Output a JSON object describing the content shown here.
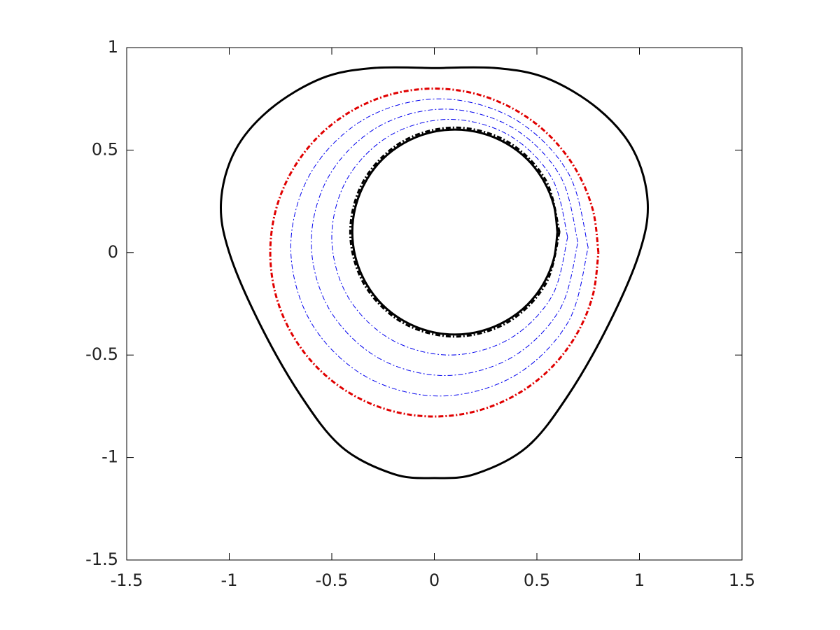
{
  "chart_data": {
    "type": "line",
    "xlim": [
      -1.5,
      1.5
    ],
    "ylim": [
      -1.5,
      1
    ],
    "xticks": [
      -1.5,
      -1,
      -0.5,
      0,
      0.5,
      1,
      1.5
    ],
    "yticks": [
      -1.5,
      -1,
      -0.5,
      0,
      0.5,
      1
    ],
    "grid": false,
    "series": [
      {
        "color": "#000000",
        "dash": "solid",
        "width": 3,
        "x": [
          0,
          0.3,
          0.55,
          0.8,
          0.97,
          1.04,
          1.0,
          0.85,
          0.65,
          0.45,
          0.2,
          0,
          -0.2,
          -0.45,
          -0.65,
          -0.85,
          -1.0,
          -1.04,
          -0.97,
          -0.8,
          -0.55,
          -0.3,
          0
        ],
        "values": [
          0.9,
          0.9,
          0.85,
          0.7,
          0.5,
          0.25,
          0.0,
          -0.35,
          -0.7,
          -0.95,
          -1.08,
          -1.1,
          -1.08,
          -0.95,
          -0.7,
          -0.35,
          0.0,
          0.25,
          0.5,
          0.7,
          0.85,
          0.9,
          0.9
        ]
      },
      {
        "color": "#e00000",
        "dash": "dashdot",
        "width": 3,
        "x": [
          0.8,
          0.773,
          0.693,
          0.566,
          0.4,
          0.207,
          0,
          -0.207,
          -0.4,
          -0.566,
          -0.693,
          -0.773,
          -0.8,
          -0.773,
          -0.693,
          -0.566,
          -0.4,
          -0.207,
          0,
          0.207,
          0.4,
          0.566,
          0.693,
          0.773,
          0.8
        ],
        "values": [
          0,
          0.207,
          0.4,
          0.566,
          0.693,
          0.773,
          0.8,
          0.773,
          0.693,
          0.566,
          0.4,
          0.207,
          0,
          -0.207,
          -0.4,
          -0.566,
          -0.693,
          -0.773,
          -0.8,
          -0.773,
          -0.693,
          -0.566,
          -0.4,
          -0.207,
          0
        ]
      },
      {
        "color": "#0000ee",
        "dash": "dashdot",
        "width": 1,
        "x": [
          0.65,
          0.573,
          0.363,
          0.075,
          -0.213,
          -0.423,
          -0.5,
          -0.423,
          -0.213,
          0.075,
          0.363,
          0.573,
          0.65
        ],
        "values": [
          0.075,
          0.363,
          0.573,
          0.65,
          0.573,
          0.363,
          0.075,
          -0.213,
          -0.423,
          -0.5,
          -0.423,
          -0.213,
          0.075
        ]
      },
      {
        "color": "#0000ee",
        "dash": "dashdot",
        "width": 1,
        "x": [
          0.7,
          0.613,
          0.375,
          0.05,
          -0.275,
          -0.513,
          -0.6,
          -0.513,
          -0.275,
          0.05,
          0.375,
          0.613,
          0.7
        ],
        "values": [
          0.05,
          0.375,
          0.613,
          0.7,
          0.613,
          0.375,
          0.05,
          -0.275,
          -0.513,
          -0.6,
          -0.513,
          -0.275,
          0.05
        ]
      },
      {
        "color": "#0000ee",
        "dash": "dashdot",
        "width": 1,
        "x": [
          0.75,
          0.653,
          0.388,
          0.025,
          -0.338,
          -0.603,
          -0.7,
          -0.603,
          -0.338,
          0.025,
          0.388,
          0.653,
          0.75
        ],
        "values": [
          0.025,
          0.388,
          0.653,
          0.75,
          0.653,
          0.388,
          0.025,
          -0.338,
          -0.603,
          -0.7,
          -0.603,
          -0.338,
          0.025
        ]
      },
      {
        "color": "#000000",
        "dash": "dashdot",
        "width": 3,
        "x": [
          0.61,
          0.542,
          0.355,
          0.1,
          -0.155,
          -0.342,
          -0.41,
          -0.342,
          -0.155,
          0.1,
          0.355,
          0.542,
          0.61
        ],
        "values": [
          0.1,
          0.355,
          0.542,
          0.61,
          0.542,
          0.355,
          0.1,
          -0.155,
          -0.342,
          -0.41,
          -0.342,
          -0.155,
          0.1
        ]
      },
      {
        "color": "#000000",
        "dash": "solid",
        "width": 3,
        "x": [
          0.6,
          0.583,
          0.533,
          0.454,
          0.35,
          0.229,
          0.1,
          -0.029,
          -0.15,
          -0.254,
          -0.333,
          -0.383,
          -0.4,
          -0.383,
          -0.333,
          -0.254,
          -0.15,
          -0.029,
          0.1,
          0.229,
          0.35,
          0.454,
          0.533,
          0.583,
          0.6
        ],
        "values": [
          0.1,
          0.229,
          0.35,
          0.454,
          0.533,
          0.583,
          0.6,
          0.583,
          0.533,
          0.454,
          0.35,
          0.229,
          0.1,
          -0.029,
          -0.15,
          -0.254,
          -0.333,
          -0.383,
          -0.4,
          -0.383,
          -0.333,
          -0.254,
          -0.15,
          -0.029,
          0.1
        ]
      }
    ]
  }
}
